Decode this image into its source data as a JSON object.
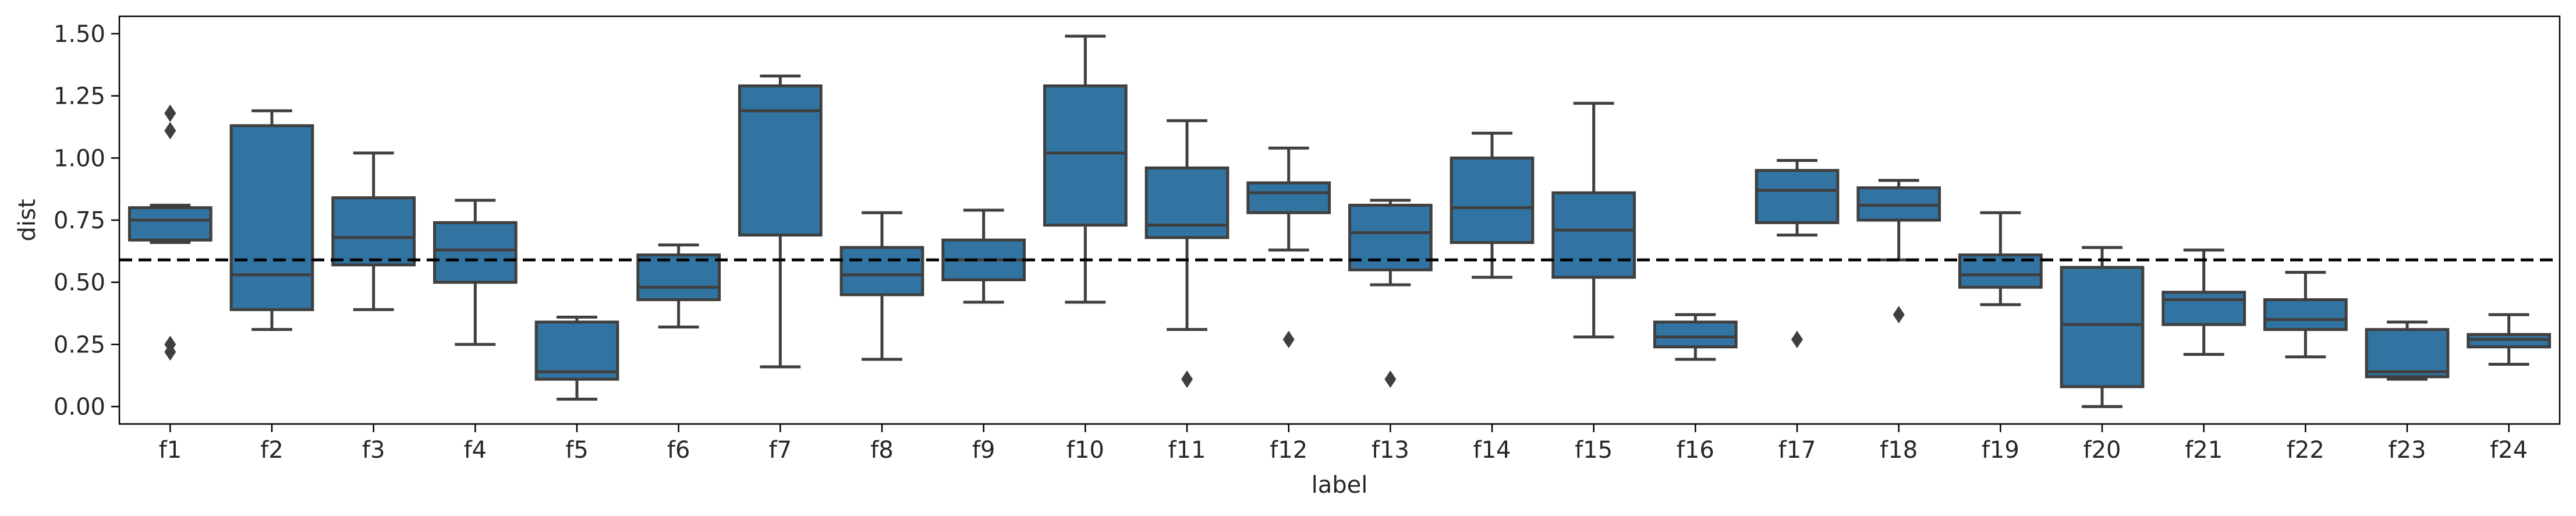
{
  "chart_data": {
    "type": "box",
    "xlabel": "label",
    "ylabel": "dist",
    "ylim": [
      -0.07,
      1.57
    ],
    "yticks": [
      "0.00",
      "0.25",
      "0.50",
      "0.75",
      "1.00",
      "1.25",
      "1.50"
    ],
    "reference_line": {
      "y": 0.59,
      "style": "dashed",
      "color": "#000000"
    },
    "box_color": "#3274a1",
    "edge_color": "#3f3f3f",
    "categories": [
      "f1",
      "f2",
      "f3",
      "f4",
      "f5",
      "f6",
      "f7",
      "f8",
      "f9",
      "f10",
      "f11",
      "f12",
      "f13",
      "f14",
      "f15",
      "f16",
      "f17",
      "f18",
      "f19",
      "f20",
      "f21",
      "f22",
      "f23",
      "f24"
    ],
    "boxes": [
      {
        "label": "f1",
        "whisker_low": 0.66,
        "q1": 0.67,
        "median": 0.75,
        "q3": 0.8,
        "whisker_high": 0.81,
        "outliers": [
          1.18,
          1.11,
          0.25,
          0.22
        ]
      },
      {
        "label": "f2",
        "whisker_low": 0.31,
        "q1": 0.39,
        "median": 0.53,
        "q3": 1.13,
        "whisker_high": 1.19,
        "outliers": []
      },
      {
        "label": "f3",
        "whisker_low": 0.39,
        "q1": 0.57,
        "median": 0.68,
        "q3": 0.84,
        "whisker_high": 1.02,
        "outliers": []
      },
      {
        "label": "f4",
        "whisker_low": 0.25,
        "q1": 0.5,
        "median": 0.63,
        "q3": 0.74,
        "whisker_high": 0.83,
        "outliers": []
      },
      {
        "label": "f5",
        "whisker_low": 0.03,
        "q1": 0.11,
        "median": 0.14,
        "q3": 0.34,
        "whisker_high": 0.36,
        "outliers": []
      },
      {
        "label": "f6",
        "whisker_low": 0.32,
        "q1": 0.43,
        "median": 0.48,
        "q3": 0.61,
        "whisker_high": 0.65,
        "outliers": []
      },
      {
        "label": "f7",
        "whisker_low": 0.16,
        "q1": 0.69,
        "median": 1.19,
        "q3": 1.29,
        "whisker_high": 1.33,
        "outliers": []
      },
      {
        "label": "f8",
        "whisker_low": 0.19,
        "q1": 0.45,
        "median": 0.53,
        "q3": 0.64,
        "whisker_high": 0.78,
        "outliers": []
      },
      {
        "label": "f9",
        "whisker_low": 0.42,
        "q1": 0.51,
        "median": 0.59,
        "q3": 0.67,
        "whisker_high": 0.79,
        "outliers": []
      },
      {
        "label": "f10",
        "whisker_low": 0.42,
        "q1": 0.73,
        "median": 1.02,
        "q3": 1.29,
        "whisker_high": 1.49,
        "outliers": []
      },
      {
        "label": "f11",
        "whisker_low": 0.31,
        "q1": 0.68,
        "median": 0.73,
        "q3": 0.96,
        "whisker_high": 1.15,
        "outliers": [
          0.11
        ]
      },
      {
        "label": "f12",
        "whisker_low": 0.63,
        "q1": 0.78,
        "median": 0.86,
        "q3": 0.9,
        "whisker_high": 1.04,
        "outliers": [
          0.27
        ]
      },
      {
        "label": "f13",
        "whisker_low": 0.49,
        "q1": 0.55,
        "median": 0.7,
        "q3": 0.81,
        "whisker_high": 0.83,
        "outliers": [
          0.11
        ]
      },
      {
        "label": "f14",
        "whisker_low": 0.52,
        "q1": 0.66,
        "median": 0.8,
        "q3": 1.0,
        "whisker_high": 1.1,
        "outliers": []
      },
      {
        "label": "f15",
        "whisker_low": 0.28,
        "q1": 0.52,
        "median": 0.71,
        "q3": 0.86,
        "whisker_high": 1.22,
        "outliers": []
      },
      {
        "label": "f16",
        "whisker_low": 0.19,
        "q1": 0.24,
        "median": 0.28,
        "q3": 0.34,
        "whisker_high": 0.37,
        "outliers": []
      },
      {
        "label": "f17",
        "whisker_low": 0.69,
        "q1": 0.74,
        "median": 0.87,
        "q3": 0.95,
        "whisker_high": 0.99,
        "outliers": [
          0.27
        ]
      },
      {
        "label": "f18",
        "whisker_low": 0.59,
        "q1": 0.75,
        "median": 0.81,
        "q3": 0.88,
        "whisker_high": 0.91,
        "outliers": [
          0.37
        ]
      },
      {
        "label": "f19",
        "whisker_low": 0.41,
        "q1": 0.48,
        "median": 0.53,
        "q3": 0.61,
        "whisker_high": 0.78,
        "outliers": []
      },
      {
        "label": "f20",
        "whisker_low": 0.0,
        "q1": 0.08,
        "median": 0.33,
        "q3": 0.56,
        "whisker_high": 0.64,
        "outliers": []
      },
      {
        "label": "f21",
        "whisker_low": 0.21,
        "q1": 0.33,
        "median": 0.43,
        "q3": 0.46,
        "whisker_high": 0.63,
        "outliers": []
      },
      {
        "label": "f22",
        "whisker_low": 0.2,
        "q1": 0.31,
        "median": 0.35,
        "q3": 0.43,
        "whisker_high": 0.54,
        "outliers": []
      },
      {
        "label": "f23",
        "whisker_low": 0.11,
        "q1": 0.12,
        "median": 0.14,
        "q3": 0.31,
        "whisker_high": 0.34,
        "outliers": []
      },
      {
        "label": "f24",
        "whisker_low": 0.17,
        "q1": 0.24,
        "median": 0.27,
        "q3": 0.29,
        "whisker_high": 0.37,
        "outliers": []
      }
    ]
  }
}
